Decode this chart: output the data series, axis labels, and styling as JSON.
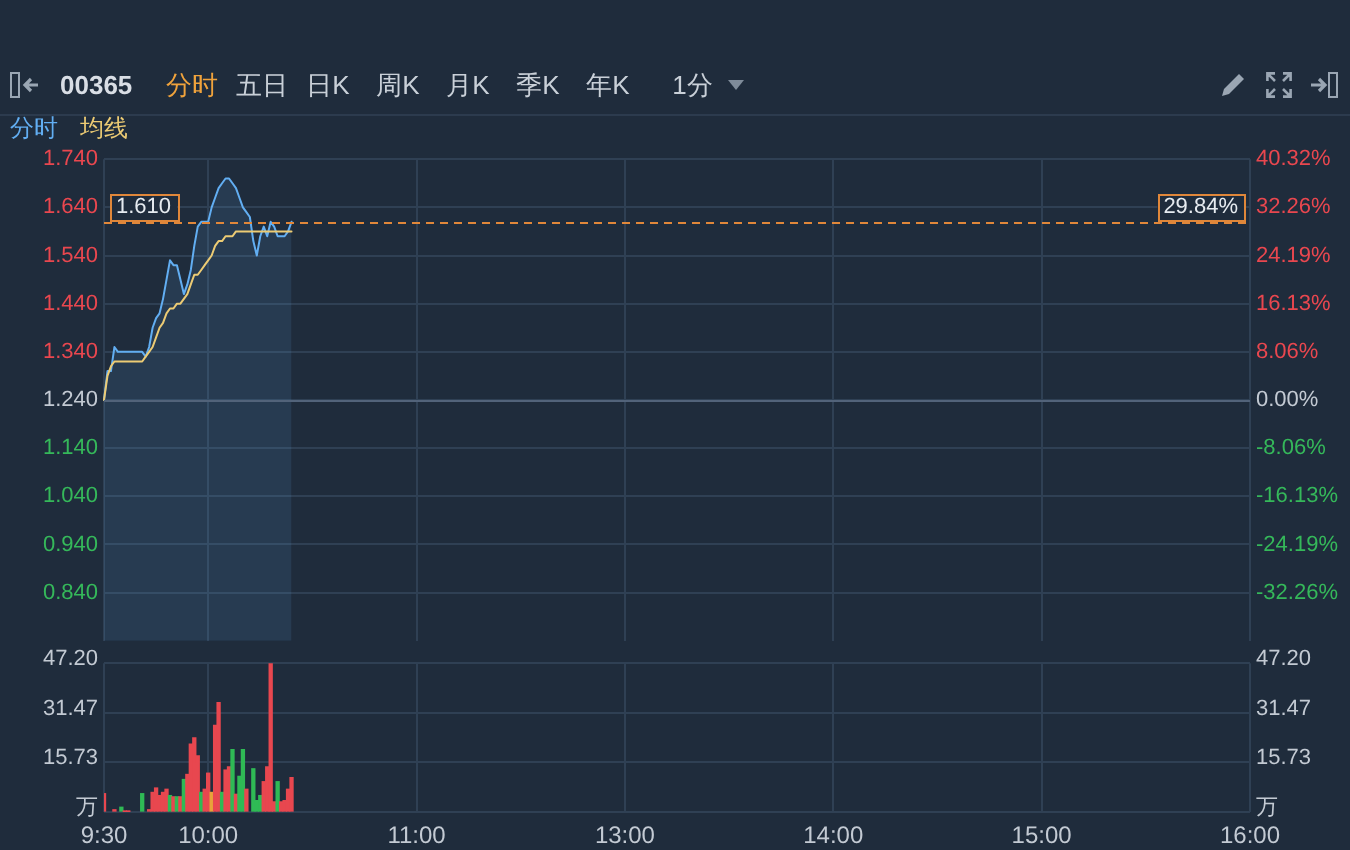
{
  "chart_data": [
    {
      "type": "line",
      "title": "00365",
      "annotations": [
        "分时",
        "五日",
        "日K",
        "周K",
        "月K",
        "季K",
        "年K",
        "1分",
        {
          "text": "29.84%",
          "y": 1.61
        }
      ],
      "categories": [
        null,
        null,
        null,
        null,
        null,
        null,
        null,
        null,
        null,
        null,
        null,
        null,
        null,
        null,
        null,
        null,
        null,
        null,
        null,
        null,
        null,
        null,
        null,
        null,
        null,
        null,
        null,
        null,
        null,
        null,
        null,
        null,
        null,
        null,
        null,
        null,
        null,
        null,
        null,
        null,
        null,
        null,
        null,
        null,
        null,
        null,
        null,
        null,
        null,
        null,
        null,
        null,
        null,
        null,
        null,
        null,
        null,
        null,
        null,
        null,
        null,
        null,
        null,
        null,
        null,
        null,
        null,
        null,
        null,
        null,
        null,
        null,
        null,
        null,
        null,
        null,
        null,
        null,
        null,
        null,
        null,
        null,
        null,
        null,
        null,
        null,
        null,
        null,
        null,
        null,
        null,
        null,
        null,
        null,
        null,
        null,
        null,
        null,
        null,
        null,
        null,
        null,
        null,
        null,
        null,
        null,
        null,
        null,
        null,
        null,
        null,
        null,
        null,
        null,
        null,
        null,
        null,
        null,
        null,
        null,
        null,
        null,
        null,
        null,
        null,
        null,
        null,
        null,
        null,
        null,
        null,
        null,
        null,
        null,
        null,
        null,
        null,
        null,
        null,
        null,
        null,
        null,
        null,
        null,
        null,
        null,
        null,
        null,
        null,
        null,
        null,
        null,
        null,
        null,
        null,
        null,
        null,
        null,
        null,
        null,
        null,
        null,
        null,
        null,
        null,
        null,
        null,
        null,
        null,
        null,
        null,
        null,
        null,
        null,
        null,
        null,
        null,
        null,
        null,
        null,
        null,
        null,
        null,
        null,
        null,
        null,
        null,
        null,
        null,
        null,
        null,
        null,
        null,
        null,
        null,
        null,
        null,
        null,
        null,
        null,
        null,
        null,
        null,
        null,
        null,
        null,
        null,
        null,
        null,
        null,
        null,
        null,
        null,
        null,
        null,
        null,
        null,
        null,
        null,
        null,
        null,
        null,
        null,
        null,
        null,
        null,
        null,
        null,
        null,
        null,
        null,
        null,
        null,
        null,
        null,
        null,
        null,
        null,
        null,
        null,
        null,
        null,
        null,
        null,
        null,
        null,
        null,
        null,
        null,
        null,
        null,
        null,
        null,
        null,
        null,
        null,
        null,
        null,
        null,
        null,
        null,
        null,
        null,
        null,
        null,
        null,
        null,
        null,
        null,
        null,
        null,
        null,
        null,
        null,
        null,
        null,
        null,
        null,
        null,
        null,
        null,
        null,
        null,
        null,
        null,
        null,
        null,
        null,
        null,
        null,
        null,
        null,
        null,
        null,
        null,
        null,
        null,
        null,
        null,
        null,
        null,
        null,
        null,
        null,
        null,
        null,
        null,
        null,
        null,
        null,
        null,
        null,
        null,
        null,
        null,
        null,
        null,
        null,
        null,
        null,
        null,
        null,
        null,
        null,
        null,
        null,
        null,
        null,
        null,
        null,
        null
      ],
      "ylim": [
        0.74,
        1.74
      ],
      "yticks": [
        {
          "value": 0.84,
          "label": "0.840"
        },
        {
          "value": 0.94,
          "label": "0.940"
        },
        {
          "value": 1.04,
          "label": "1.040"
        },
        {
          "value": 1.14,
          "label": "1.140"
        },
        {
          "value": 1.24,
          "label": "1.240"
        },
        {
          "value": 1.34,
          "label": "1.340"
        },
        {
          "value": 1.44,
          "label": "1.440"
        },
        {
          "value": 1.54,
          "label": "1.540"
        },
        {
          "value": 1.64,
          "label": "1.640"
        },
        {
          "value": 1.74,
          "label": "1.740"
        }
      ],
      "y2lim": [
        -40.32,
        40.32
      ],
      "y2ticks": [
        {
          "value": -32.26,
          "label": "-32.26%"
        },
        {
          "value": -24.19,
          "label": "-24.19%"
        },
        {
          "value": -16.13,
          "label": "-16.13%"
        },
        {
          "value": -8.06,
          "label": "-8.06%"
        },
        {
          "value": 0,
          "label": "0.00%"
        },
        {
          "value": 8.06,
          "label": "8.06%"
        },
        {
          "value": 16.13,
          "label": "16.13%"
        },
        {
          "value": 24.19,
          "label": "24.19%"
        },
        {
          "value": 32.26,
          "label": "32.26%"
        },
        {
          "value": 40.32,
          "label": "40.32%"
        }
      ],
      "series": [
        {
          "name": "分时",
          "type": "area",
          "color": "#62aef2",
          "values": [
            1.24,
            1.3,
            1.3,
            1.35,
            1.34,
            1.34,
            1.34,
            1.34,
            1.34,
            1.34,
            1.34,
            1.34,
            1.33,
            1.35,
            1.39,
            1.41,
            1.42,
            1.45,
            1.49,
            1.53,
            1.52,
            1.52,
            1.49,
            1.46,
            1.48,
            1.51,
            1.56,
            1.6,
            1.61,
            1.61,
            1.61,
            1.64,
            1.66,
            1.68,
            1.69,
            1.7,
            1.7,
            1.69,
            1.68,
            1.66,
            1.64,
            1.63,
            1.62,
            1.57,
            1.54,
            1.58,
            1.6,
            1.58,
            1.61,
            1.6,
            1.58,
            1.58,
            1.58,
            1.59,
            1.61,
            null,
            null,
            null,
            null,
            null,
            null,
            null,
            null,
            null,
            null,
            null,
            null,
            null,
            null,
            null,
            null,
            null,
            null,
            null,
            null,
            null,
            null,
            null,
            null,
            null,
            null,
            null,
            null,
            null,
            null,
            null,
            null,
            null,
            null,
            null,
            null,
            null,
            null,
            null,
            null,
            null,
            null,
            null,
            null,
            null,
            null,
            null,
            null,
            null,
            null,
            null,
            null,
            null,
            null,
            null,
            null,
            null,
            null,
            null,
            null,
            null,
            null,
            null,
            null,
            null,
            null,
            null,
            null,
            null,
            null,
            null,
            null,
            null,
            null,
            null,
            null,
            null,
            null,
            null,
            null,
            null,
            null,
            null,
            null,
            null,
            null,
            null,
            null,
            null,
            null,
            null,
            null,
            null,
            null,
            null,
            null,
            null,
            null,
            null,
            null,
            null,
            null,
            null,
            null,
            null,
            null,
            null,
            null,
            null,
            null,
            null,
            null,
            null,
            null,
            null,
            null,
            null,
            null,
            null,
            null,
            null,
            null,
            null,
            null,
            null,
            null,
            null,
            null,
            null,
            null,
            null,
            null,
            null,
            null,
            null,
            null,
            null,
            null,
            null,
            null,
            null,
            null,
            null,
            null,
            null,
            null,
            null,
            null,
            null,
            null,
            null,
            null,
            null,
            null,
            null,
            null,
            null,
            null,
            null,
            null,
            null,
            null,
            null,
            null,
            null,
            null,
            null,
            null,
            null,
            null,
            null,
            null,
            null,
            null,
            null,
            null,
            null,
            null,
            null,
            null,
            null,
            null,
            null,
            null,
            null,
            null,
            null,
            null,
            null,
            null,
            null,
            null,
            null,
            null,
            null,
            null,
            null,
            null,
            null,
            null,
            null,
            null,
            null,
            null,
            null,
            null,
            null,
            null,
            null,
            null,
            null,
            null,
            null,
            null,
            null,
            null,
            null,
            null,
            null,
            null,
            null,
            null,
            null,
            null,
            null,
            null,
            null,
            null,
            null,
            null,
            null,
            null,
            null,
            null,
            null,
            null,
            null,
            null,
            null,
            null,
            null,
            null,
            null,
            null,
            null,
            null,
            null,
            null,
            null,
            null,
            null,
            null,
            null,
            null,
            null,
            null,
            null,
            null,
            null,
            null,
            null,
            null,
            null,
            null,
            null,
            null,
            null,
            null,
            null,
            null,
            null,
            null,
            null,
            null,
            null,
            null
          ]
        },
        {
          "name": "均线",
          "color": "#eccb74",
          "values": [
            1.24,
            1.29,
            1.31,
            1.32,
            1.32,
            1.32,
            1.32,
            1.32,
            1.32,
            1.32,
            1.32,
            1.32,
            1.33,
            1.34,
            1.35,
            1.37,
            1.39,
            1.4,
            1.42,
            1.43,
            1.43,
            1.44,
            1.44,
            1.45,
            1.46,
            1.48,
            1.5,
            1.5,
            1.51,
            1.52,
            1.53,
            1.54,
            1.56,
            1.57,
            1.57,
            1.58,
            1.58,
            1.58,
            1.59,
            1.59,
            1.59,
            1.59,
            1.59,
            1.59,
            1.59,
            1.59,
            1.59,
            1.59,
            1.59,
            1.59,
            1.59,
            1.59,
            1.59,
            1.59,
            1.59,
            null,
            null,
            null,
            null,
            null,
            null,
            null,
            null,
            null,
            null,
            null,
            null,
            null,
            null,
            null,
            null,
            null,
            null,
            null,
            null,
            null,
            null,
            null,
            null,
            null,
            null,
            null,
            null,
            null,
            null,
            null,
            null,
            null,
            null,
            null,
            null,
            null,
            null,
            null,
            null,
            null,
            null,
            null,
            null,
            null,
            null,
            null,
            null,
            null,
            null,
            null,
            null,
            null,
            null,
            null,
            null,
            null,
            null,
            null,
            null,
            null,
            null,
            null,
            null,
            null,
            null,
            null,
            null,
            null,
            null,
            null,
            null,
            null,
            null,
            null,
            null,
            null,
            null,
            null,
            null,
            null,
            null,
            null,
            null,
            null,
            null,
            null,
            null,
            null,
            null,
            null,
            null,
            null,
            null,
            null,
            null,
            null,
            null,
            null,
            null,
            null,
            null,
            null,
            null,
            null,
            null,
            null,
            null,
            null,
            null,
            null,
            null,
            null,
            null,
            null,
            null,
            null,
            null,
            null,
            null,
            null,
            null,
            null,
            null,
            null,
            null,
            null,
            null,
            null,
            null,
            null,
            null,
            null,
            null,
            null,
            null,
            null,
            null,
            null,
            null,
            null,
            null,
            null,
            null,
            null,
            null,
            null,
            null,
            null,
            null,
            null,
            null,
            null,
            null,
            null,
            null,
            null,
            null,
            null,
            null,
            null,
            null,
            null,
            null,
            null,
            null,
            null,
            null,
            null,
            null,
            null,
            null,
            null,
            null,
            null,
            null,
            null,
            null,
            null,
            null,
            null,
            null,
            null,
            null,
            null,
            null,
            null,
            null,
            null,
            null,
            null,
            null,
            null,
            null,
            null,
            null,
            null,
            null,
            null,
            null,
            null,
            null,
            null,
            null,
            null,
            null,
            null,
            null,
            null,
            null,
            null,
            null,
            null,
            null,
            null,
            null,
            null,
            null,
            null,
            null,
            null,
            null,
            null,
            null,
            null,
            null,
            null,
            null,
            null,
            null,
            null,
            null,
            null,
            null,
            null,
            null,
            null,
            null,
            null,
            null,
            null,
            null,
            null,
            null,
            null,
            null,
            null,
            null,
            null,
            null,
            null,
            null,
            null,
            null,
            null,
            null,
            null,
            null,
            null,
            null,
            null,
            null,
            null,
            null,
            null,
            null,
            null,
            null,
            null,
            null,
            null,
            null,
            null,
            null,
            null,
            null
          ]
        }
      ],
      "ref_lines": [
        {
          "axis": "y",
          "value": 1.24,
          "color": "#52637a"
        },
        {
          "axis": "y",
          "value": 1.61,
          "label": "1.610",
          "color": "#e0873a",
          "line_style": "dashed"
        }
      ],
      "grid": true,
      "legend": "top left",
      "tick_labels": "y"
    },
    {
      "type": "bar",
      "categories": [
        "9:30",
        null,
        null,
        null,
        null,
        null,
        null,
        null,
        null,
        null,
        null,
        null,
        null,
        null,
        null,
        null,
        null,
        null,
        null,
        null,
        null,
        null,
        null,
        null,
        null,
        null,
        null,
        null,
        null,
        null,
        "10:00",
        null,
        null,
        null,
        null,
        null,
        null,
        null,
        null,
        null,
        null,
        null,
        null,
        null,
        null,
        null,
        null,
        null,
        null,
        null,
        null,
        null,
        null,
        null,
        null,
        null,
        null,
        null,
        null,
        null,
        null,
        null,
        null,
        null,
        null,
        null,
        null,
        null,
        null,
        null,
        null,
        null,
        null,
        null,
        null,
        null,
        null,
        null,
        null,
        null,
        null,
        null,
        null,
        null,
        null,
        null,
        null,
        null,
        null,
        null,
        "11:00",
        null,
        null,
        null,
        null,
        null,
        null,
        null,
        null,
        null,
        null,
        null,
        null,
        null,
        null,
        null,
        null,
        null,
        null,
        null,
        null,
        null,
        null,
        null,
        null,
        null,
        null,
        null,
        null,
        null,
        null,
        null,
        null,
        null,
        null,
        null,
        null,
        null,
        null,
        null,
        null,
        null,
        null,
        null,
        null,
        null,
        null,
        null,
        null,
        null,
        null,
        null,
        null,
        null,
        null,
        null,
        null,
        null,
        null,
        null,
        "13:00",
        null,
        null,
        null,
        null,
        null,
        null,
        null,
        null,
        null,
        null,
        null,
        null,
        null,
        null,
        null,
        null,
        null,
        null,
        null,
        null,
        null,
        null,
        null,
        null,
        null,
        null,
        null,
        null,
        null,
        null,
        null,
        null,
        null,
        null,
        null,
        null,
        null,
        null,
        null,
        null,
        null,
        null,
        null,
        null,
        null,
        null,
        null,
        null,
        null,
        null,
        null,
        null,
        null,
        null,
        null,
        null,
        null,
        null,
        null,
        "14:00",
        null,
        null,
        null,
        null,
        null,
        null,
        null,
        null,
        null,
        null,
        null,
        null,
        null,
        null,
        null,
        null,
        null,
        null,
        null,
        null,
        null,
        null,
        null,
        null,
        null,
        null,
        null,
        null,
        null,
        null,
        null,
        null,
        null,
        null,
        null,
        null,
        null,
        null,
        null,
        null,
        null,
        null,
        null,
        null,
        null,
        null,
        null,
        null,
        null,
        null,
        null,
        null,
        null,
        null,
        null,
        null,
        null,
        null,
        null,
        "15:00",
        null,
        null,
        null,
        null,
        null,
        null,
        null,
        null,
        null,
        null,
        null,
        null,
        null,
        null,
        null,
        null,
        null,
        null,
        null,
        null,
        null,
        null,
        null,
        null,
        null,
        null,
        null,
        null,
        null,
        null,
        null,
        null,
        null,
        null,
        null,
        null,
        null,
        null,
        null,
        null,
        null,
        null,
        null,
        null,
        null,
        null,
        null,
        null,
        null,
        null,
        null,
        null,
        null,
        null,
        null,
        null,
        null,
        null,
        null,
        "16:00"
      ],
      "values": [
        5.8,
        null,
        null,
        0.7,
        null,
        1.5,
        0.2,
        0.2,
        null,
        null,
        null,
        5.8,
        null,
        0.7,
        6.2,
        7.6,
        5.2,
        6.2,
        7.2,
        5.2,
        4.8,
        4.8,
        4.8,
        10.3,
        11.9,
        21.5,
        23.5,
        17.8,
        6.2,
        7.2,
        12.3,
        6.2,
        27.5,
        34.7,
        6.2,
        13.3,
        14.3,
        19.8,
        5.6,
        11.3,
        19.8,
        7.2,
        null,
        13.7,
        3.6,
        5.2,
        9.6,
        14.3,
        47.2,
        3.2,
        9.6,
        3.2,
        3.6,
        7.2,
        10.9,
        null,
        null,
        null,
        null,
        null,
        null,
        null,
        null,
        null,
        null,
        null,
        null,
        null,
        null,
        null,
        null,
        null,
        null,
        null,
        null,
        null,
        null,
        null,
        null,
        null,
        null,
        null,
        null,
        null,
        null,
        null,
        null,
        null,
        null,
        null,
        null,
        null,
        null,
        null,
        null,
        null,
        null,
        null,
        null,
        null,
        null,
        null,
        null,
        null,
        null,
        null,
        null,
        null,
        null,
        null,
        null,
        null,
        null,
        null,
        null,
        null,
        null,
        null,
        null,
        null,
        null,
        null,
        null,
        null,
        null,
        null,
        null,
        null,
        null,
        null,
        null,
        null,
        null,
        null,
        null,
        null,
        null,
        null,
        null,
        null,
        null,
        null,
        null,
        null,
        null,
        null,
        null,
        null,
        null,
        null,
        null,
        null,
        null,
        null,
        null,
        null,
        null,
        null,
        null,
        null,
        null,
        null,
        null,
        null,
        null,
        null,
        null,
        null,
        null,
        null,
        null,
        null,
        null,
        null,
        null,
        null,
        null,
        null,
        null,
        null,
        null,
        null,
        null,
        null,
        null,
        null,
        null,
        null,
        null,
        null,
        null,
        null,
        null,
        null,
        null,
        null,
        null,
        null,
        null,
        null,
        null,
        null,
        null,
        null,
        null,
        null,
        null,
        null,
        null,
        null,
        null,
        null,
        null,
        null,
        null,
        null,
        null,
        null,
        null,
        null,
        null,
        null,
        null,
        null,
        null,
        null,
        null,
        null,
        null,
        null,
        null,
        null,
        null,
        null,
        null,
        null,
        null,
        null,
        null,
        null,
        null,
        null,
        null,
        null,
        null,
        null,
        null,
        null,
        null,
        null,
        null,
        null,
        null,
        null,
        null,
        null,
        null,
        null,
        null,
        null,
        null,
        null,
        null,
        null,
        null,
        null,
        null,
        null,
        null,
        null,
        null,
        null,
        null,
        null,
        null,
        null,
        null,
        null,
        null,
        null,
        null,
        null,
        null,
        null,
        null,
        null,
        null,
        null,
        null,
        null,
        null,
        null,
        null,
        null,
        null,
        null,
        null,
        null,
        null,
        null,
        null,
        null,
        null,
        null,
        null,
        null,
        null,
        null,
        null,
        null,
        null,
        null,
        null,
        null,
        null,
        null,
        null,
        null,
        null,
        null,
        null,
        null,
        null,
        null,
        null,
        null,
        null,
        null,
        null,
        null,
        null
      ],
      "colors": [
        "#e8474f",
        null,
        null,
        "#e8474f",
        null,
        "#2fba55",
        "#e8474f",
        "#e8474f",
        null,
        null,
        null,
        "#2fba55",
        null,
        "#e8474f",
        "#e8474f",
        "#e8474f",
        "#e8474f",
        "#e8474f",
        "#e8474f",
        "#2fba55",
        "#e8474f",
        "#2fba55",
        "#e8474f",
        "#2fba55",
        "#e8474f",
        "#e8474f",
        "#e8474f",
        "#e8474f",
        "#2fba55",
        "#e8474f",
        "#e8474f",
        "#e8a23a",
        "#e8474f",
        "#e8474f",
        "#2fba55",
        "#e8474f",
        "#e8474f",
        "#2fba55",
        "#e8474f",
        "#2fba55",
        "#2fba55",
        "#e8474f",
        null,
        "#2fba55",
        "#2fba55",
        "#2fba55",
        "#e8474f",
        "#e8474f",
        "#e8474f",
        "#e8474f",
        "#2fba55",
        "#e8474f",
        "#e8474f",
        "#e8474f",
        "#e8474f",
        null,
        null,
        null,
        null,
        null,
        null,
        null,
        null,
        null,
        null,
        null,
        null,
        null,
        null,
        null,
        null,
        null,
        null,
        null,
        null,
        null,
        null,
        null,
        null,
        null,
        null,
        null,
        null,
        null,
        null,
        null,
        null,
        null,
        null,
        null,
        null,
        null,
        null,
        null,
        null,
        null,
        null,
        null,
        null,
        null,
        null,
        null,
        null,
        null,
        null,
        null,
        null,
        null,
        null,
        null,
        null,
        null,
        null,
        null,
        null,
        null,
        null,
        null,
        null,
        null,
        null,
        null,
        null,
        null,
        null,
        null,
        null,
        null,
        null,
        null,
        null,
        null,
        null,
        null,
        null,
        null,
        null,
        null,
        null,
        null,
        null,
        null,
        null,
        null,
        null,
        null,
        null,
        null,
        null,
        null,
        null,
        null,
        null,
        null,
        null,
        null,
        null,
        null,
        null,
        null,
        null,
        null,
        null,
        null,
        null,
        null,
        null,
        null,
        null,
        null,
        null,
        null,
        null,
        null,
        null,
        null,
        null,
        null,
        null,
        null,
        null,
        null,
        null,
        null,
        null,
        null,
        null,
        null,
        null,
        null,
        null,
        null,
        null,
        null,
        null,
        null,
        null,
        null,
        null,
        null,
        null,
        null,
        null,
        null,
        null,
        null,
        null,
        null,
        null,
        null,
        null,
        null,
        null,
        null,
        null,
        null,
        null,
        null,
        null,
        null,
        null,
        null,
        null,
        null,
        null,
        null,
        null,
        null,
        null,
        null,
        null,
        null,
        null,
        null,
        null,
        null,
        null,
        null,
        null,
        null,
        null,
        null,
        null,
        null,
        null,
        null,
        null,
        null,
        null,
        null,
        null,
        null,
        null,
        null,
        null,
        null,
        null,
        null,
        null,
        null,
        null,
        null,
        null,
        null,
        null,
        null,
        null,
        null,
        null,
        null,
        null,
        null,
        null,
        null,
        null,
        null,
        null,
        null,
        null,
        null,
        null,
        null,
        null,
        null,
        null,
        null,
        null,
        null,
        null,
        null,
        null,
        null,
        null,
        null,
        null,
        null,
        null,
        null,
        null,
        null,
        null,
        null,
        null,
        null,
        null,
        null,
        null,
        null,
        null,
        null,
        null,
        null,
        null,
        null,
        null,
        null,
        null,
        null,
        null,
        null,
        null,
        null,
        null,
        null,
        null,
        null,
        null,
        null,
        null,
        null,
        null
      ],
      "ylim": [
        0,
        47.2
      ],
      "yticks": [
        {
          "value": 0,
          "label": "万"
        },
        15.73,
        31.47,
        {
          "value": 47.2,
          "label": "47.20"
        }
      ],
      "y2lim": [
        0,
        47.2
      ],
      "y2ticks": [
        {
          "value": 0,
          "label": "万"
        },
        15.73,
        31.47,
        {
          "value": 47.2,
          "label": "47.20"
        }
      ],
      "grid": true
    }
  ]
}
